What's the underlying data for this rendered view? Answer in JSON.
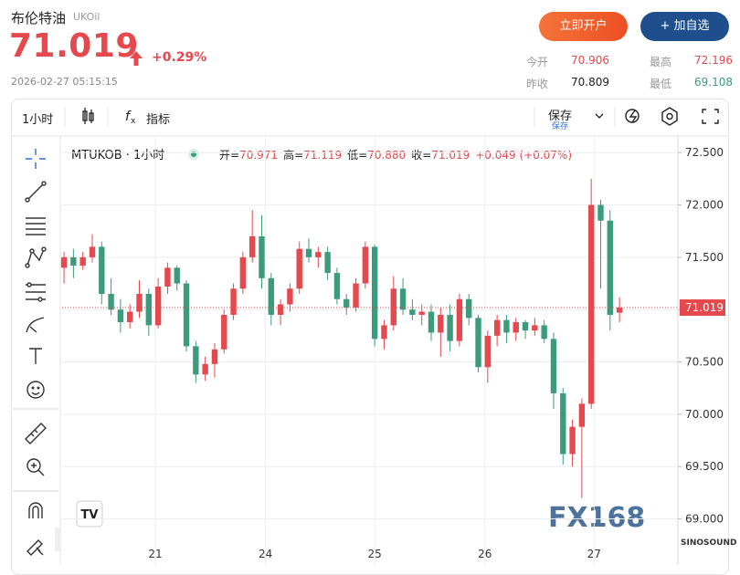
{
  "header": {
    "title": "布伦特油",
    "symbol": "UKOil",
    "price": "71.019",
    "change": "+0.29%",
    "timestamp": "2026-02-27 05:15:15",
    "buttons": [
      "立即开户",
      "+ 加自选"
    ],
    "stats": [
      {
        "label": "今开",
        "value": "70.906"
      },
      {
        "label": "最高",
        "value": "72.196"
      },
      {
        "label": "昨收",
        "value": "70.809"
      },
      {
        "label": "最低",
        "value": "69.108"
      }
    ]
  },
  "toolbar": {
    "interval": "1小时",
    "indicators": "指标",
    "save": "保存",
    "save_sub": "保存"
  },
  "legend": {
    "symbol": "MTUKOB · 1小时",
    "items": [
      {
        "label": "开=",
        "value": "70.971"
      },
      {
        "label": "高=",
        "value": "71.119"
      },
      {
        "label": "低=",
        "value": "70.880"
      },
      {
        "label": "收=",
        "value": "71.019"
      }
    ],
    "change": "+0.049 (+0.07%)"
  },
  "watermarks": [
    "FX168",
    "SINOSOUND"
  ],
  "chart_data": {
    "type": "candlestick",
    "x": [
      0,
      1,
      2,
      3,
      4,
      5,
      6,
      7,
      8,
      9,
      10,
      11,
      12,
      13,
      14,
      15,
      16,
      17,
      18,
      19,
      20,
      21,
      22,
      23,
      24,
      25,
      26,
      27,
      28,
      29,
      30,
      31,
      32,
      33,
      34,
      35,
      36,
      37,
      38,
      39,
      40,
      41,
      42,
      43,
      44,
      45,
      46,
      47,
      48,
      49,
      50,
      51,
      52,
      53,
      54,
      55,
      56,
      57,
      58,
      59
    ],
    "open": [
      71.4,
      71.5,
      71.42,
      71.5,
      71.6,
      71.15,
      71.0,
      70.88,
      70.98,
      71.15,
      70.85,
      71.22,
      71.4,
      71.25,
      70.65,
      70.38,
      70.48,
      70.62,
      70.95,
      71.2,
      71.5,
      71.7,
      71.3,
      70.95,
      71.05,
      71.2,
      71.58,
      71.5,
      71.55,
      71.35,
      71.1,
      71.02,
      71.25,
      71.6,
      70.72,
      70.85,
      71.2,
      71.0,
      70.95,
      70.98,
      70.78,
      70.95,
      70.7,
      71.1,
      70.92,
      70.45,
      70.75,
      70.9,
      70.78,
      70.88,
      70.8,
      70.85,
      70.72,
      70.2,
      69.62,
      69.88,
      70.1,
      72.0,
      71.85,
      70.971
    ],
    "high": [
      71.55,
      71.58,
      71.55,
      71.72,
      71.65,
      71.3,
      71.1,
      71.05,
      71.28,
      71.2,
      71.3,
      71.45,
      71.42,
      71.28,
      70.7,
      70.55,
      70.68,
      71.0,
      71.25,
      71.55,
      71.95,
      71.9,
      71.35,
      71.1,
      71.25,
      71.65,
      71.68,
      71.6,
      71.6,
      71.4,
      71.15,
      71.3,
      71.65,
      71.62,
      70.9,
      71.32,
      71.3,
      71.1,
      71.05,
      71.05,
      71.02,
      71.05,
      71.15,
      71.15,
      70.95,
      70.8,
      70.95,
      70.95,
      70.92,
      70.9,
      70.92,
      70.9,
      70.78,
      70.25,
      69.95,
      70.15,
      72.25,
      72.05,
      71.95,
      71.119
    ],
    "low": [
      71.25,
      71.3,
      71.38,
      71.45,
      71.05,
      70.95,
      70.78,
      70.82,
      70.92,
      70.75,
      70.82,
      71.15,
      71.18,
      70.6,
      70.3,
      70.32,
      70.35,
      70.58,
      70.9,
      71.15,
      71.45,
      71.2,
      70.85,
      70.85,
      70.98,
      71.15,
      71.45,
      71.4,
      71.28,
      71.05,
      70.95,
      70.98,
      71.2,
      70.65,
      70.62,
      70.8,
      70.95,
      70.9,
      70.85,
      70.7,
      70.55,
      70.6,
      70.65,
      70.85,
      70.4,
      70.3,
      70.65,
      70.68,
      70.7,
      70.72,
      70.75,
      70.68,
      70.05,
      69.52,
      69.5,
      69.2,
      70.05,
      71.2,
      70.8,
      70.88
    ],
    "close": [
      71.5,
      71.42,
      71.5,
      71.6,
      71.15,
      71.0,
      70.88,
      70.98,
      71.15,
      70.85,
      71.22,
      71.4,
      71.25,
      70.65,
      70.38,
      70.48,
      70.62,
      70.95,
      71.2,
      71.5,
      71.7,
      71.3,
      70.95,
      71.05,
      71.2,
      71.58,
      71.5,
      71.55,
      71.35,
      71.1,
      71.02,
      71.25,
      71.6,
      70.72,
      70.85,
      71.2,
      71.0,
      70.95,
      70.98,
      70.78,
      70.95,
      70.7,
      71.1,
      70.92,
      70.45,
      70.75,
      70.9,
      70.78,
      70.88,
      70.8,
      70.85,
      70.72,
      70.2,
      69.62,
      69.88,
      70.1,
      72.0,
      71.85,
      70.95,
      71.019
    ],
    "up_color": "#e5484d",
    "down_color": "#3c9b7b",
    "xlim": [
      -0.2,
      65.2
    ],
    "xticks": [
      {
        "value": 9.7,
        "label": "21"
      },
      {
        "value": 21.4,
        "label": "24"
      },
      {
        "value": 33.0,
        "label": "25"
      },
      {
        "value": 44.7,
        "label": "26"
      },
      {
        "value": 56.3,
        "label": "27"
      }
    ],
    "ylim": [
      68.56,
      72.65
    ],
    "yticks": [
      {
        "value": 72.5,
        "label": "72.500"
      },
      {
        "value": 72.0,
        "label": "72.000"
      },
      {
        "value": 71.5,
        "label": "71.500"
      },
      {
        "value": 71.0,
        "label": "71.000"
      },
      {
        "value": 70.5,
        "label": "70.500"
      },
      {
        "value": 70.0,
        "label": "70.000"
      },
      {
        "value": 69.5,
        "label": "69.500"
      },
      {
        "value": 69.0,
        "label": "69.000"
      }
    ],
    "grid": true
  }
}
